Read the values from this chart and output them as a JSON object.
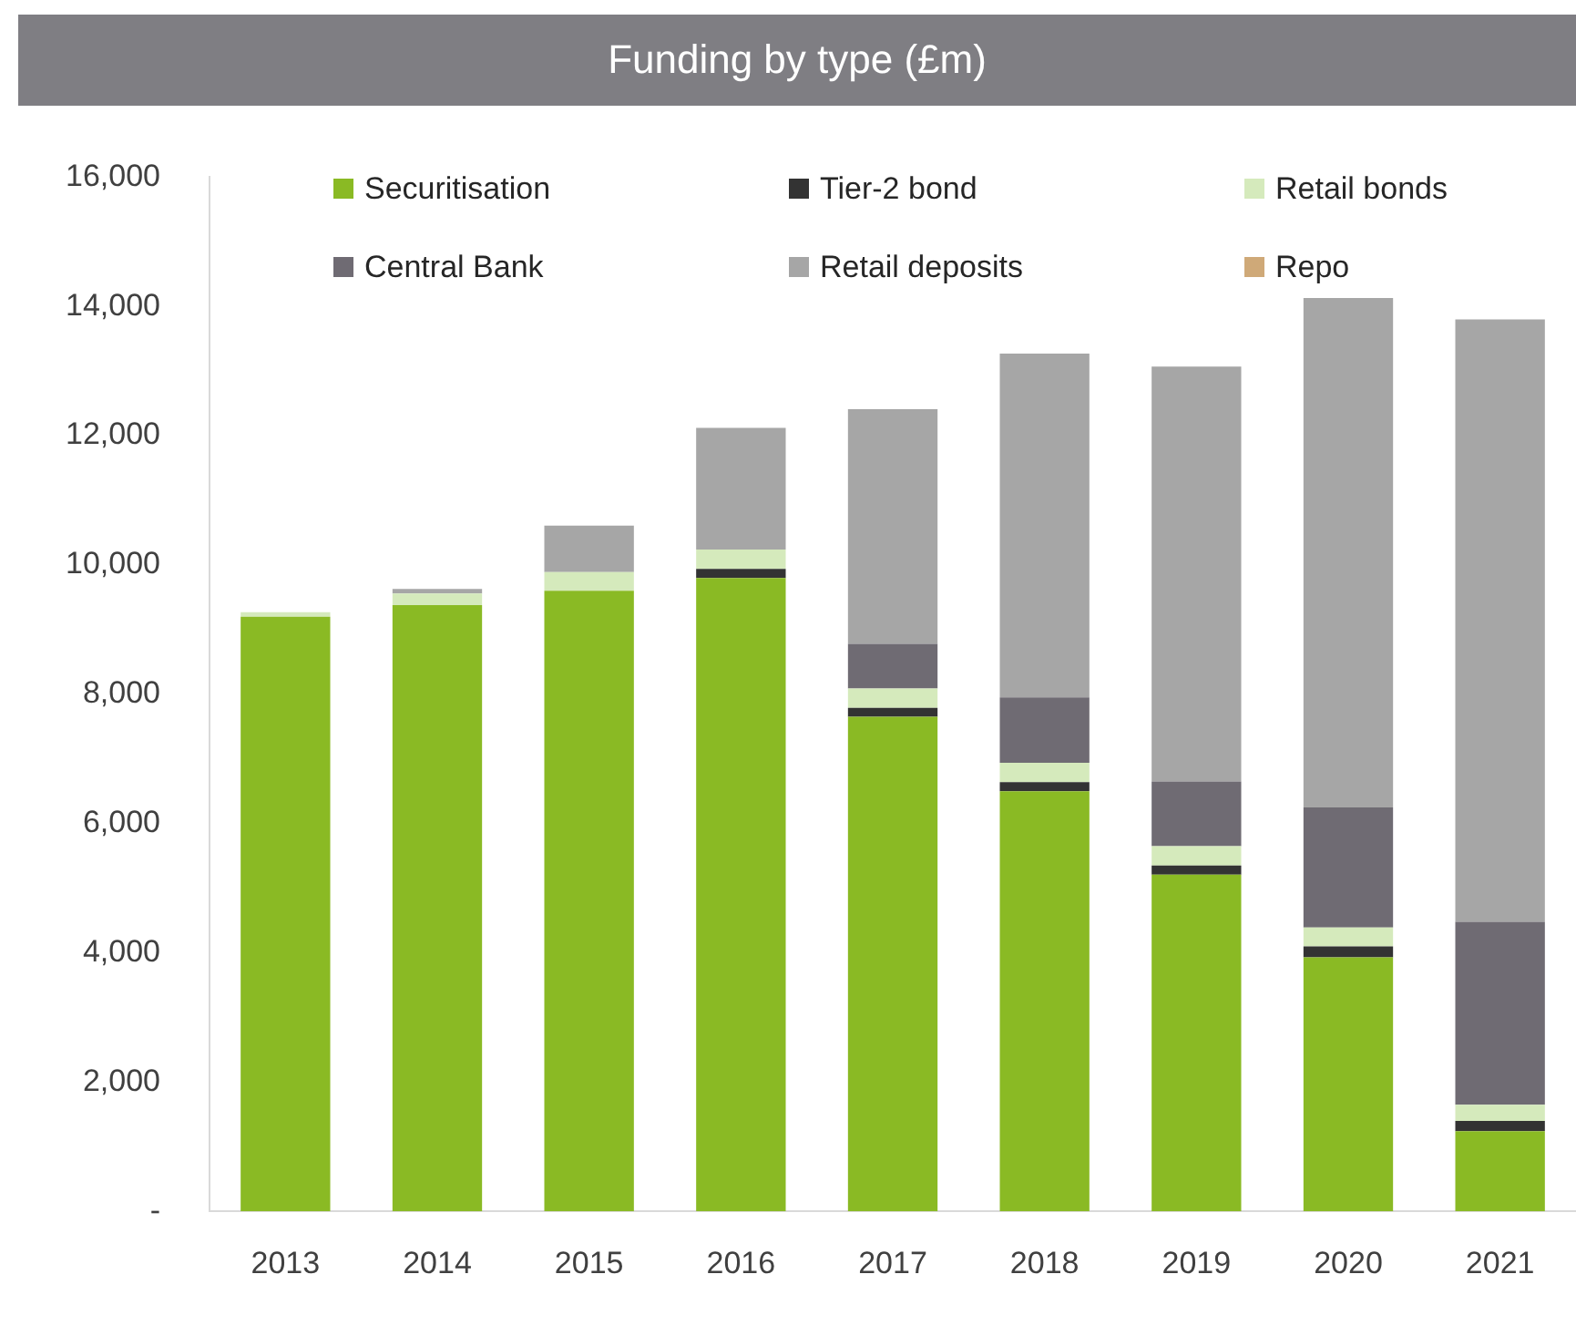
{
  "chart_data": {
    "type": "bar",
    "title": "Funding by type (£m)",
    "categories": [
      "2013",
      "2014",
      "2015",
      "2016",
      "2017",
      "2018",
      "2019",
      "2020",
      "2021"
    ],
    "series": [
      {
        "name": "Securitisation",
        "color": "#8aba24",
        "values": [
          9200,
          9380,
          9600,
          9800,
          7650,
          6500,
          5210,
          3930,
          1240
        ]
      },
      {
        "name": "Tier-2 bond",
        "color": "#333333",
        "values": [
          0,
          0,
          0,
          140,
          140,
          140,
          140,
          170,
          160
        ]
      },
      {
        "name": "Retail bonds",
        "color": "#d5eabc",
        "values": [
          70,
          180,
          290,
          300,
          300,
          300,
          300,
          290,
          250
        ]
      },
      {
        "name": "Central Bank",
        "color": "#6f6b73",
        "values": [
          0,
          0,
          0,
          0,
          690,
          1010,
          1000,
          1860,
          2830
        ]
      },
      {
        "name": "Retail deposits",
        "color": "#a6a6a6",
        "values": [
          0,
          70,
          720,
          1880,
          3630,
          5320,
          6420,
          7880,
          9320
        ]
      },
      {
        "name": "Repo",
        "color": "#cfa978",
        "values": [
          0,
          0,
          0,
          0,
          0,
          0,
          0,
          0,
          0
        ]
      }
    ],
    "stacked": true,
    "ylim": [
      0,
      16000
    ],
    "yticks": [
      {
        "value": 0,
        "label": "-"
      },
      {
        "value": 2000,
        "label": "2,000"
      },
      {
        "value": 4000,
        "label": "4,000"
      },
      {
        "value": 6000,
        "label": "6,000"
      },
      {
        "value": 8000,
        "label": "8,000"
      },
      {
        "value": 10000,
        "label": "10,000"
      },
      {
        "value": 12000,
        "label": "12,000"
      },
      {
        "value": 14000,
        "label": "14,000"
      },
      {
        "value": 16000,
        "label": "16,000"
      }
    ],
    "grid": false,
    "legend": "top"
  }
}
